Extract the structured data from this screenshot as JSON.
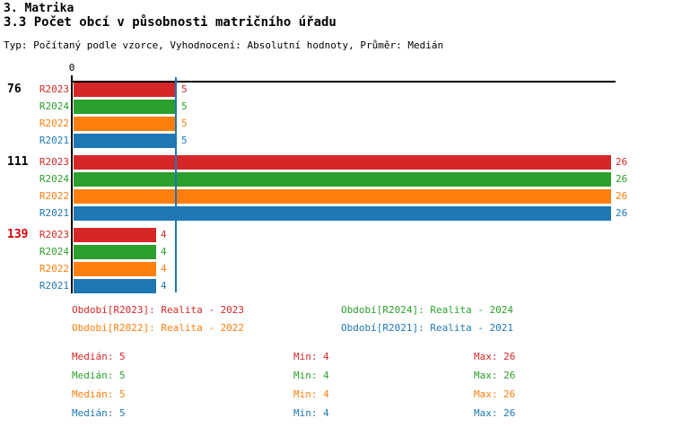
{
  "header": {
    "title": "3. Matrika",
    "subtitle": "3.3 Počet obcí v působnosti matričního úřadu",
    "meta_line": "Typ: Počítaný podle vzorce, Vyhodnocení: Absolutní hodnoty, Průměr: Medián"
  },
  "colors": {
    "red": "#d62728",
    "green": "#2ca02c",
    "orange": "#ff7f0e",
    "blue": "#1f77b4",
    "axis": "#000000",
    "median_line": "#1f77b4",
    "highlight_label": "#d40000",
    "normal_label": "#000000"
  },
  "chart_data": {
    "type": "bar",
    "orientation": "horizontal",
    "title": "3.3 Počet obcí v působnosti matričního úřadu",
    "x_axis": {
      "origin_tick_label": "0",
      "min": 0
    },
    "median_reference_value": 5,
    "categories": [
      {
        "label": "76",
        "highlighted": false
      },
      {
        "label": "111",
        "highlighted": false
      },
      {
        "label": "139",
        "highlighted": true
      }
    ],
    "series": [
      {
        "name": "R2023",
        "color_key": "red",
        "values": [
          5,
          26,
          4
        ]
      },
      {
        "name": "R2024",
        "color_key": "green",
        "values": [
          5,
          26,
          4
        ]
      },
      {
        "name": "R2022",
        "color_key": "orange",
        "values": [
          5,
          26,
          4
        ]
      },
      {
        "name": "R2021",
        "color_key": "blue",
        "values": [
          5,
          26,
          4
        ]
      }
    ]
  },
  "legend": [
    {
      "text": "Období[R2023]: Realita - 2023",
      "color_key": "red"
    },
    {
      "text": "Období[R2024]: Realita - 2024",
      "color_key": "green"
    },
    {
      "text": "Období[R2022]: Realita - 2022",
      "color_key": "orange"
    },
    {
      "text": "Období[R2021]: Realita - 2021",
      "color_key": "blue"
    }
  ],
  "stats": [
    {
      "color_key": "red",
      "median": "Medián: 5",
      "min": "Min: 4",
      "max": "Max: 26"
    },
    {
      "color_key": "green",
      "median": "Medián: 5",
      "min": "Min: 4",
      "max": "Max: 26"
    },
    {
      "color_key": "orange",
      "median": "Medián: 5",
      "min": "Min: 4",
      "max": "Max: 26"
    },
    {
      "color_key": "blue",
      "median": "Medián: 5",
      "min": "Min: 4",
      "max": "Max: 26"
    }
  ]
}
